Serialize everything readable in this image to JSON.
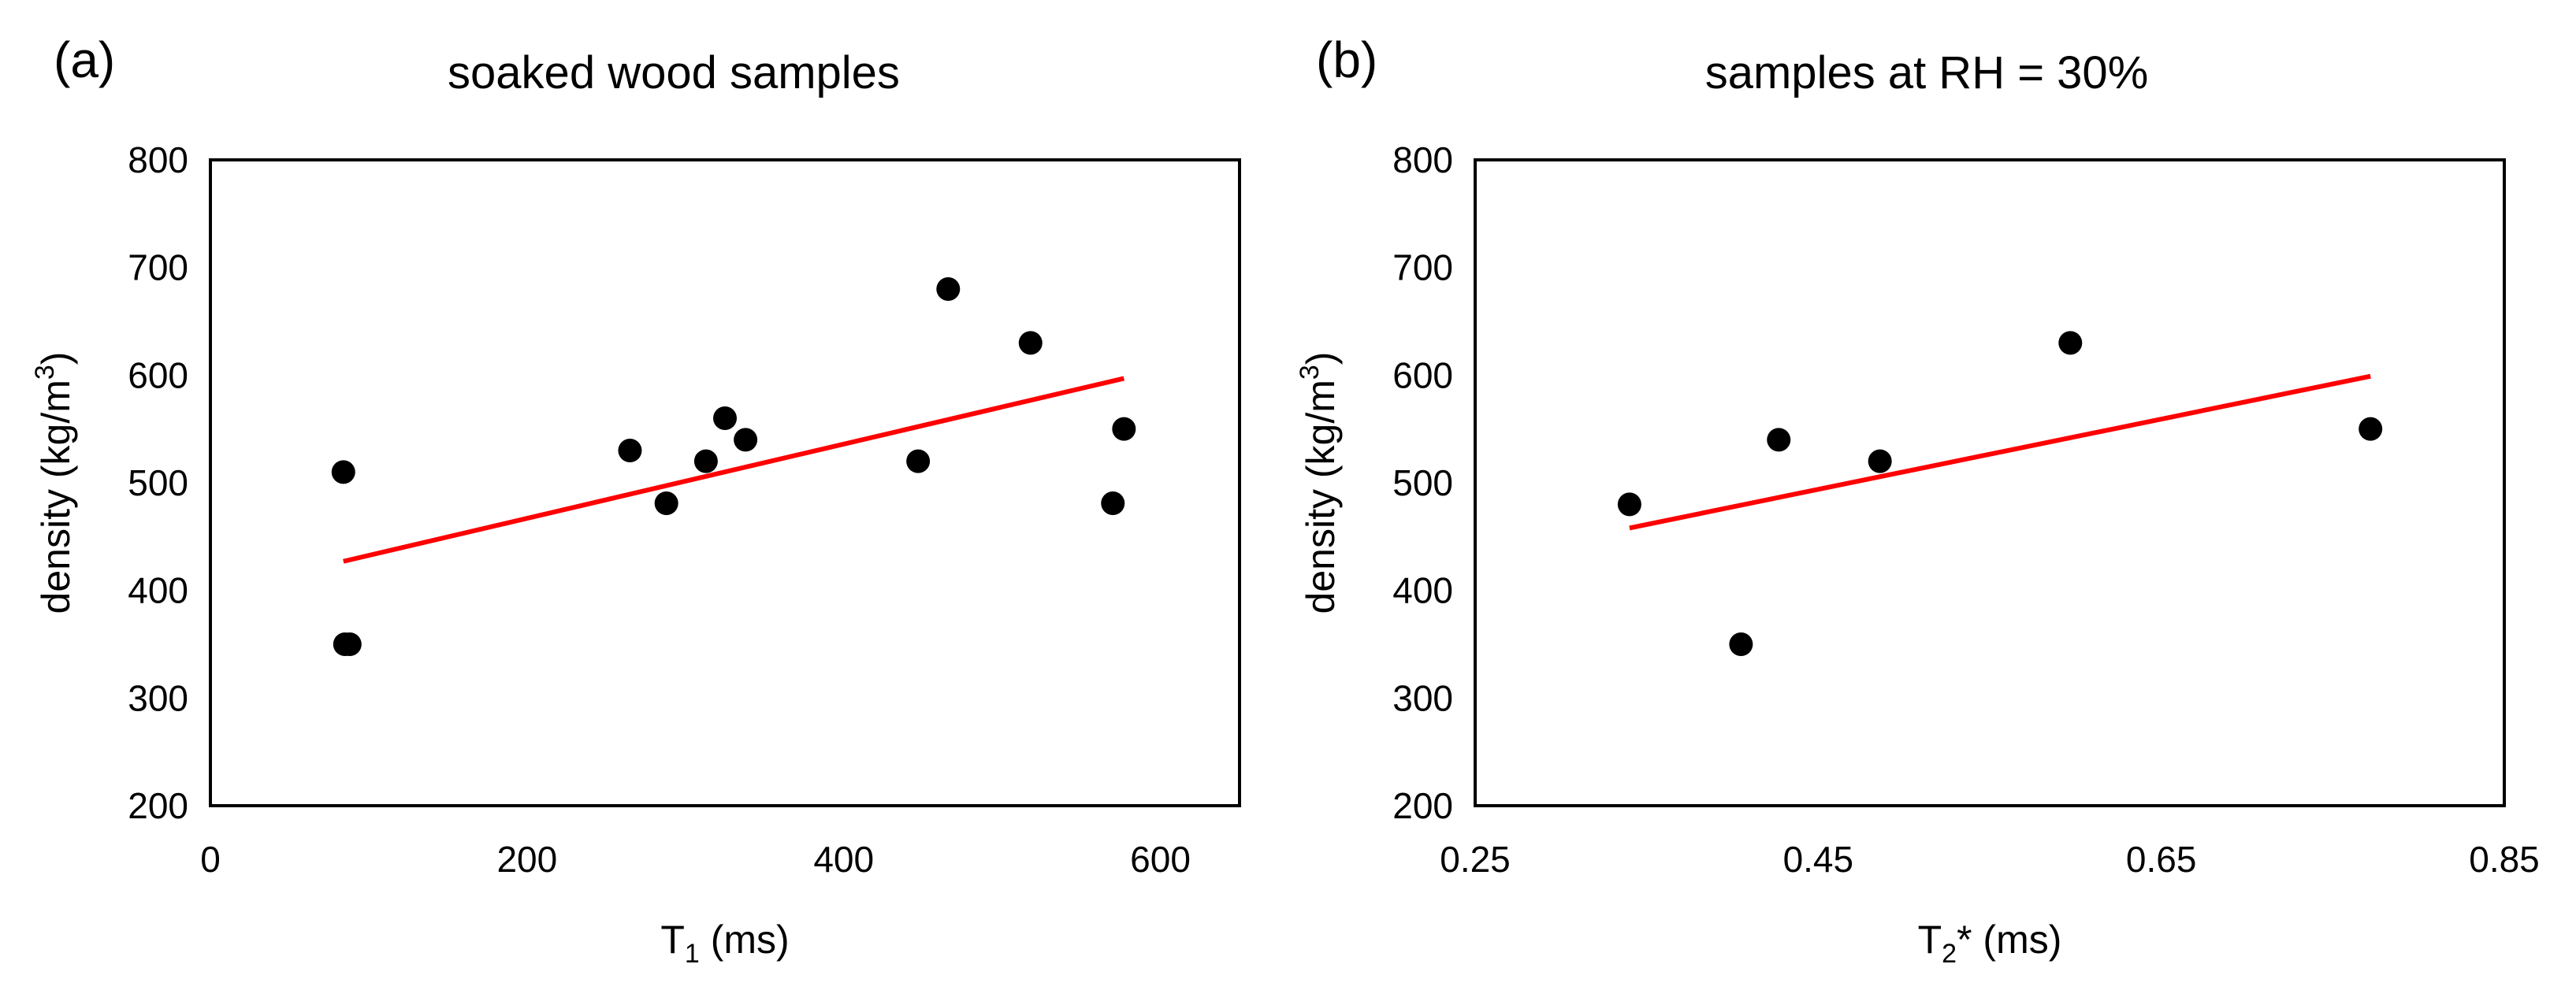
{
  "chart_data": [
    {
      "type": "scatter",
      "panel_label": "(a)",
      "title": "soaked wood samples",
      "xlabel": {
        "base": "T",
        "subscript": "1",
        "suffix": " (ms)"
      },
      "ylabel": {
        "prefix": "density (kg/m",
        "superscript": "3",
        "suffix": ")"
      },
      "xlim": [
        0,
        650
      ],
      "ylim": [
        200,
        800
      ],
      "xticks": [
        0,
        200,
        400,
        600
      ],
      "xtick_labels": [
        "0",
        "200",
        "400",
        "600"
      ],
      "yticks": [
        200,
        300,
        400,
        500,
        600,
        700,
        800
      ],
      "ytick_labels": [
        "200",
        "300",
        "400",
        "500",
        "600",
        "700",
        "800"
      ],
      "grid": false,
      "points": [
        {
          "x": 84,
          "y": 510
        },
        {
          "x": 85,
          "y": 350
        },
        {
          "x": 88,
          "y": 350
        },
        {
          "x": 265,
          "y": 530
        },
        {
          "x": 288,
          "y": 481
        },
        {
          "x": 313,
          "y": 520
        },
        {
          "x": 325,
          "y": 560
        },
        {
          "x": 338,
          "y": 540
        },
        {
          "x": 447,
          "y": 520
        },
        {
          "x": 466,
          "y": 680
        },
        {
          "x": 518,
          "y": 630
        },
        {
          "x": 570,
          "y": 481
        },
        {
          "x": 577,
          "y": 550
        }
      ],
      "trendline": {
        "x": [
          84,
          577
        ],
        "y": [
          427,
          597
        ],
        "color": "#ff0000"
      },
      "marker_color": "#000000"
    },
    {
      "type": "scatter",
      "panel_label": "(b)",
      "title": "samples at RH = 30%",
      "xlabel": {
        "base": "T",
        "subscript": "2",
        "suffix": "* (ms)"
      },
      "ylabel": {
        "prefix": "density (kg/m",
        "superscript": "3",
        "suffix": ")"
      },
      "xlim": [
        0.25,
        0.85
      ],
      "ylim": [
        200,
        800
      ],
      "xticks": [
        0.25,
        0.45,
        0.65,
        0.85
      ],
      "xtick_labels": [
        "0.25",
        "0.45",
        "0.65",
        "0.85"
      ],
      "yticks": [
        200,
        300,
        400,
        500,
        600,
        700,
        800
      ],
      "ytick_labels": [
        "200",
        "300",
        "400",
        "500",
        "600",
        "700",
        "800"
      ],
      "grid": false,
      "points": [
        {
          "x": 0.34,
          "y": 480
        },
        {
          "x": 0.405,
          "y": 350
        },
        {
          "x": 0.427,
          "y": 540
        },
        {
          "x": 0.486,
          "y": 520
        },
        {
          "x": 0.597,
          "y": 630
        },
        {
          "x": 0.772,
          "y": 550
        }
      ],
      "trendline": {
        "x": [
          0.34,
          0.772
        ],
        "y": [
          458,
          599
        ],
        "color": "#ff0000"
      },
      "marker_color": "#000000"
    }
  ]
}
